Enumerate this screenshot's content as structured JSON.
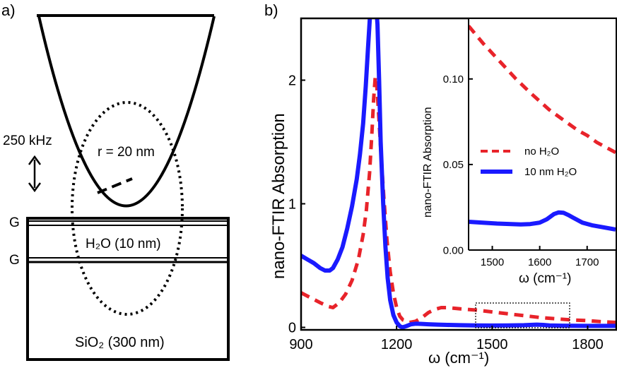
{
  "panel_a": {
    "label": "a)",
    "frequency_label": "250 kHz",
    "radius_label": "r = 20 nm",
    "graphene_top": "G",
    "graphene_bottom": "G",
    "water_label": "H₂O (10 nm)",
    "substrate_label": "SiO₂ (300 nm)"
  },
  "colors": {
    "no_h2o": "#e8232a",
    "h2o": "#1a1aff"
  },
  "chart_data": [
    {
      "type": "line",
      "panel": "b)",
      "title": "",
      "xlabel": "ω (cm⁻¹)",
      "ylabel": "nano-FTIR Absorption",
      "xlim": [
        900,
        1890
      ],
      "ylim": [
        -0.02,
        2.5
      ],
      "xticks": [
        900,
        1200,
        1500,
        1800
      ],
      "xtick_labels": [
        "900",
        "1200",
        "1500",
        "1800"
      ],
      "yticks": [
        0,
        1,
        2
      ],
      "ytick_labels": [
        "0",
        "1",
        "2"
      ],
      "series": [
        {
          "name": "no H₂O",
          "color": "#e8232a",
          "style": "dashed",
          "x": [
            900,
            930,
            960,
            985,
            1000,
            1020,
            1040,
            1060,
            1080,
            1095,
            1105,
            1115,
            1122,
            1128,
            1133,
            1138,
            1143,
            1150,
            1160,
            1170,
            1180,
            1190,
            1200,
            1210,
            1220,
            1240,
            1260,
            1280,
            1300,
            1320,
            1340,
            1360,
            1380,
            1400,
            1450,
            1500,
            1550,
            1600,
            1650,
            1700,
            1750,
            1800,
            1850,
            1890
          ],
          "y": [
            0.28,
            0.24,
            0.2,
            0.17,
            0.16,
            0.2,
            0.27,
            0.38,
            0.55,
            0.75,
            0.95,
            1.25,
            1.55,
            1.85,
            2.03,
            1.95,
            1.75,
            1.45,
            1.05,
            0.7,
            0.45,
            0.28,
            0.16,
            0.09,
            0.06,
            0.04,
            0.05,
            0.08,
            0.12,
            0.145,
            0.16,
            0.16,
            0.155,
            0.15,
            0.14,
            0.125,
            0.11,
            0.095,
            0.08,
            0.07,
            0.06,
            0.055,
            0.045,
            0.04
          ]
        },
        {
          "name": "10 nm H₂O",
          "color": "#1a1aff",
          "style": "solid",
          "x": [
            900,
            920,
            940,
            960,
            975,
            990,
            1000,
            1015,
            1030,
            1045,
            1060,
            1075,
            1085,
            1095,
            1103,
            1110,
            1116,
            1120,
            1124,
            1127,
            1130,
            1133,
            1136,
            1140,
            1145,
            1150,
            1158,
            1165,
            1172,
            1180,
            1190,
            1200,
            1210,
            1218,
            1230,
            1245,
            1260,
            1280,
            1300,
            1330,
            1360,
            1400,
            1450,
            1500,
            1550,
            1600,
            1640,
            1660,
            1680,
            1720,
            1760,
            1800,
            1850,
            1890
          ],
          "y": [
            0.58,
            0.55,
            0.52,
            0.48,
            0.46,
            0.46,
            0.48,
            0.55,
            0.65,
            0.8,
            0.98,
            1.2,
            1.4,
            1.65,
            1.95,
            2.25,
            2.5,
            2.6,
            2.6,
            2.6,
            2.6,
            2.6,
            2.6,
            2.45,
            2.0,
            1.5,
            1.0,
            0.65,
            0.4,
            0.22,
            0.1,
            0.04,
            0.01,
            0.0,
            0.01,
            0.025,
            0.03,
            0.028,
            0.025,
            0.022,
            0.02,
            0.018,
            0.016,
            0.015,
            0.016,
            0.018,
            0.022,
            0.02,
            0.016,
            0.014,
            0.013,
            0.012,
            0.012,
            0.012
          ]
        }
      ]
    },
    {
      "type": "line",
      "panel": "inset",
      "title": "",
      "xlabel": "ω (cm⁻¹)",
      "ylabel": "nano-FTIR Absorption",
      "xlim": [
        1450,
        1760
      ],
      "ylim": [
        0,
        0.135
      ],
      "xticks": [
        1500,
        1600,
        1700
      ],
      "xtick_labels": [
        "1500",
        "1600",
        "1700"
      ],
      "yticks": [
        0,
        0.05,
        0.1
      ],
      "ytick_labels": [
        "0.00",
        "0.05",
        "0.10"
      ],
      "legend": [
        {
          "name": "no H₂O",
          "color": "#e8232a",
          "style": "dashed"
        },
        {
          "name": "10 nm H₂O",
          "color": "#1a1aff",
          "style": "solid"
        }
      ],
      "series": [
        {
          "name": "no H₂O",
          "color": "#e8232a",
          "style": "dashed",
          "x": [
            1450,
            1480,
            1500,
            1520,
            1550,
            1580,
            1600,
            1620,
            1650,
            1680,
            1700,
            1720,
            1740,
            1760
          ],
          "y": [
            0.131,
            0.121,
            0.115,
            0.109,
            0.1,
            0.092,
            0.087,
            0.082,
            0.076,
            0.07,
            0.067,
            0.063,
            0.06,
            0.057
          ]
        },
        {
          "name": "10 nm H₂O",
          "color": "#1a1aff",
          "style": "solid",
          "x": [
            1450,
            1480,
            1510,
            1540,
            1560,
            1580,
            1600,
            1615,
            1630,
            1640,
            1650,
            1660,
            1670,
            1690,
            1710,
            1730,
            1760
          ],
          "y": [
            0.0165,
            0.016,
            0.0155,
            0.0152,
            0.015,
            0.0152,
            0.016,
            0.018,
            0.021,
            0.022,
            0.0218,
            0.0205,
            0.019,
            0.016,
            0.0145,
            0.0135,
            0.012
          ]
        }
      ]
    }
  ]
}
